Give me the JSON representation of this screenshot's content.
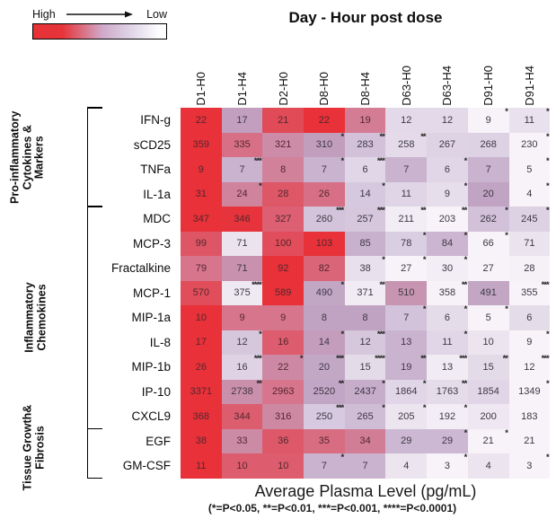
{
  "chart_data": {
    "type": "heatmap",
    "title": "Day - Hour post dose",
    "legend_high": "High",
    "legend_low": "Low",
    "value_label": "Average Plasma Level (pg/mL)",
    "significance_note": "(*=P<0.05, **=P<0.01, ***=P<0.001, ****=P<0.0001)",
    "normalization": "per-row, high=red low=white",
    "colormap": {
      "high": "#e83138",
      "mid": "#c3a8c8",
      "low": "#f7f3f8"
    },
    "columns": [
      "D1-H0",
      "D1-H4",
      "D2-H0",
      "D8-H0",
      "D8-H4",
      "D63-H0",
      "D63-H4",
      "D91-H0",
      "D91-H4"
    ],
    "row_groups": [
      {
        "label_lines": [
          "Pro-inflammatory",
          "Cytokines &",
          "Markers"
        ],
        "row_start": 0,
        "row_end": 3
      },
      {
        "label_lines": [
          "Inflammatory",
          "Chemokines"
        ],
        "row_start": 4,
        "row_end": 12
      },
      {
        "label_lines": [
          "Tissue Growth&",
          "Fibrosis"
        ],
        "row_start": 13,
        "row_end": 14
      }
    ],
    "rows": [
      {
        "label": "IFN-g",
        "values": [
          22,
          17,
          21,
          22,
          19,
          12,
          12,
          9,
          11
        ],
        "sig": [
          "",
          "",
          "",
          "",
          "",
          "",
          "",
          "*",
          "*"
        ]
      },
      {
        "label": "sCD25",
        "values": [
          359,
          335,
          321,
          310,
          283,
          258,
          267,
          268,
          230
        ],
        "sig": [
          "",
          "",
          "",
          "*",
          "**",
          "**",
          "",
          "",
          "*"
        ]
      },
      {
        "label": "TNFa",
        "values": [
          9,
          7,
          8,
          7,
          6,
          7,
          6,
          7,
          5
        ],
        "sig": [
          "",
          "***",
          "",
          "*",
          "***",
          "",
          "*",
          "",
          "*"
        ]
      },
      {
        "label": "IL-1a",
        "values": [
          31,
          24,
          28,
          26,
          14,
          11,
          9,
          20,
          4
        ],
        "sig": [
          "",
          "*",
          "",
          "",
          "*",
          "",
          "*",
          "",
          "*"
        ]
      },
      {
        "label": "MDC",
        "values": [
          347,
          346,
          327,
          260,
          257,
          211,
          203,
          262,
          245
        ],
        "sig": [
          "",
          "",
          "",
          "***",
          "***",
          "**",
          "**",
          "*",
          "*"
        ]
      },
      {
        "label": "MCP-3",
        "values": [
          99,
          71,
          100,
          103,
          85,
          78,
          84,
          66,
          71
        ],
        "sig": [
          "",
          "",
          "",
          "",
          "",
          "*",
          "*",
          "*",
          ""
        ]
      },
      {
        "label": "Fractalkine",
        "values": [
          79,
          71,
          92,
          82,
          38,
          27,
          30,
          27,
          28
        ],
        "sig": [
          "",
          "",
          "",
          "",
          "*",
          "*",
          "*",
          "",
          ""
        ]
      },
      {
        "label": "MCP-1",
        "values": [
          570,
          375,
          589,
          490,
          371,
          510,
          358,
          491,
          355
        ],
        "sig": [
          "",
          "****",
          "",
          "*",
          "**",
          "",
          "**",
          "",
          "***"
        ]
      },
      {
        "label": "MIP-1a",
        "values": [
          10,
          9,
          9,
          8,
          8,
          7,
          6,
          5,
          6
        ],
        "sig": [
          "",
          "",
          "",
          "",
          "",
          "*",
          "*",
          "*",
          ""
        ]
      },
      {
        "label": "IL-8",
        "values": [
          17,
          12,
          16,
          14,
          12,
          13,
          11,
          10,
          9
        ],
        "sig": [
          "",
          "*",
          "",
          "*",
          "***",
          "",
          "*",
          "",
          "*"
        ]
      },
      {
        "label": "MIP-1b",
        "values": [
          26,
          16,
          22,
          20,
          15,
          19,
          13,
          15,
          12
        ],
        "sig": [
          "",
          "***",
          "*",
          "***",
          "****",
          "**",
          "***",
          "**",
          "***"
        ]
      },
      {
        "label": "IP-10",
        "values": [
          3371,
          2738,
          2963,
          2520,
          2437,
          1864,
          1763,
          1854,
          1349
        ],
        "sig": [
          "",
          "**",
          "",
          "**",
          "*",
          "*",
          "**",
          "",
          "*"
        ]
      },
      {
        "label": "CXCL9",
        "values": [
          368,
          344,
          316,
          250,
          265,
          205,
          192,
          200,
          183
        ],
        "sig": [
          "",
          "",
          "",
          "***",
          "*",
          "*",
          "*",
          "",
          ""
        ]
      },
      {
        "label": "EGF",
        "values": [
          38,
          33,
          36,
          35,
          34,
          29,
          29,
          21,
          21
        ],
        "sig": [
          "",
          "",
          "",
          "",
          "",
          "",
          "*",
          "*",
          ""
        ]
      },
      {
        "label": "GM-CSF",
        "values": [
          11,
          10,
          10,
          7,
          7,
          4,
          3,
          4,
          3
        ],
        "sig": [
          "",
          "",
          "",
          "*",
          "",
          "",
          "*",
          "",
          "*"
        ]
      }
    ]
  }
}
